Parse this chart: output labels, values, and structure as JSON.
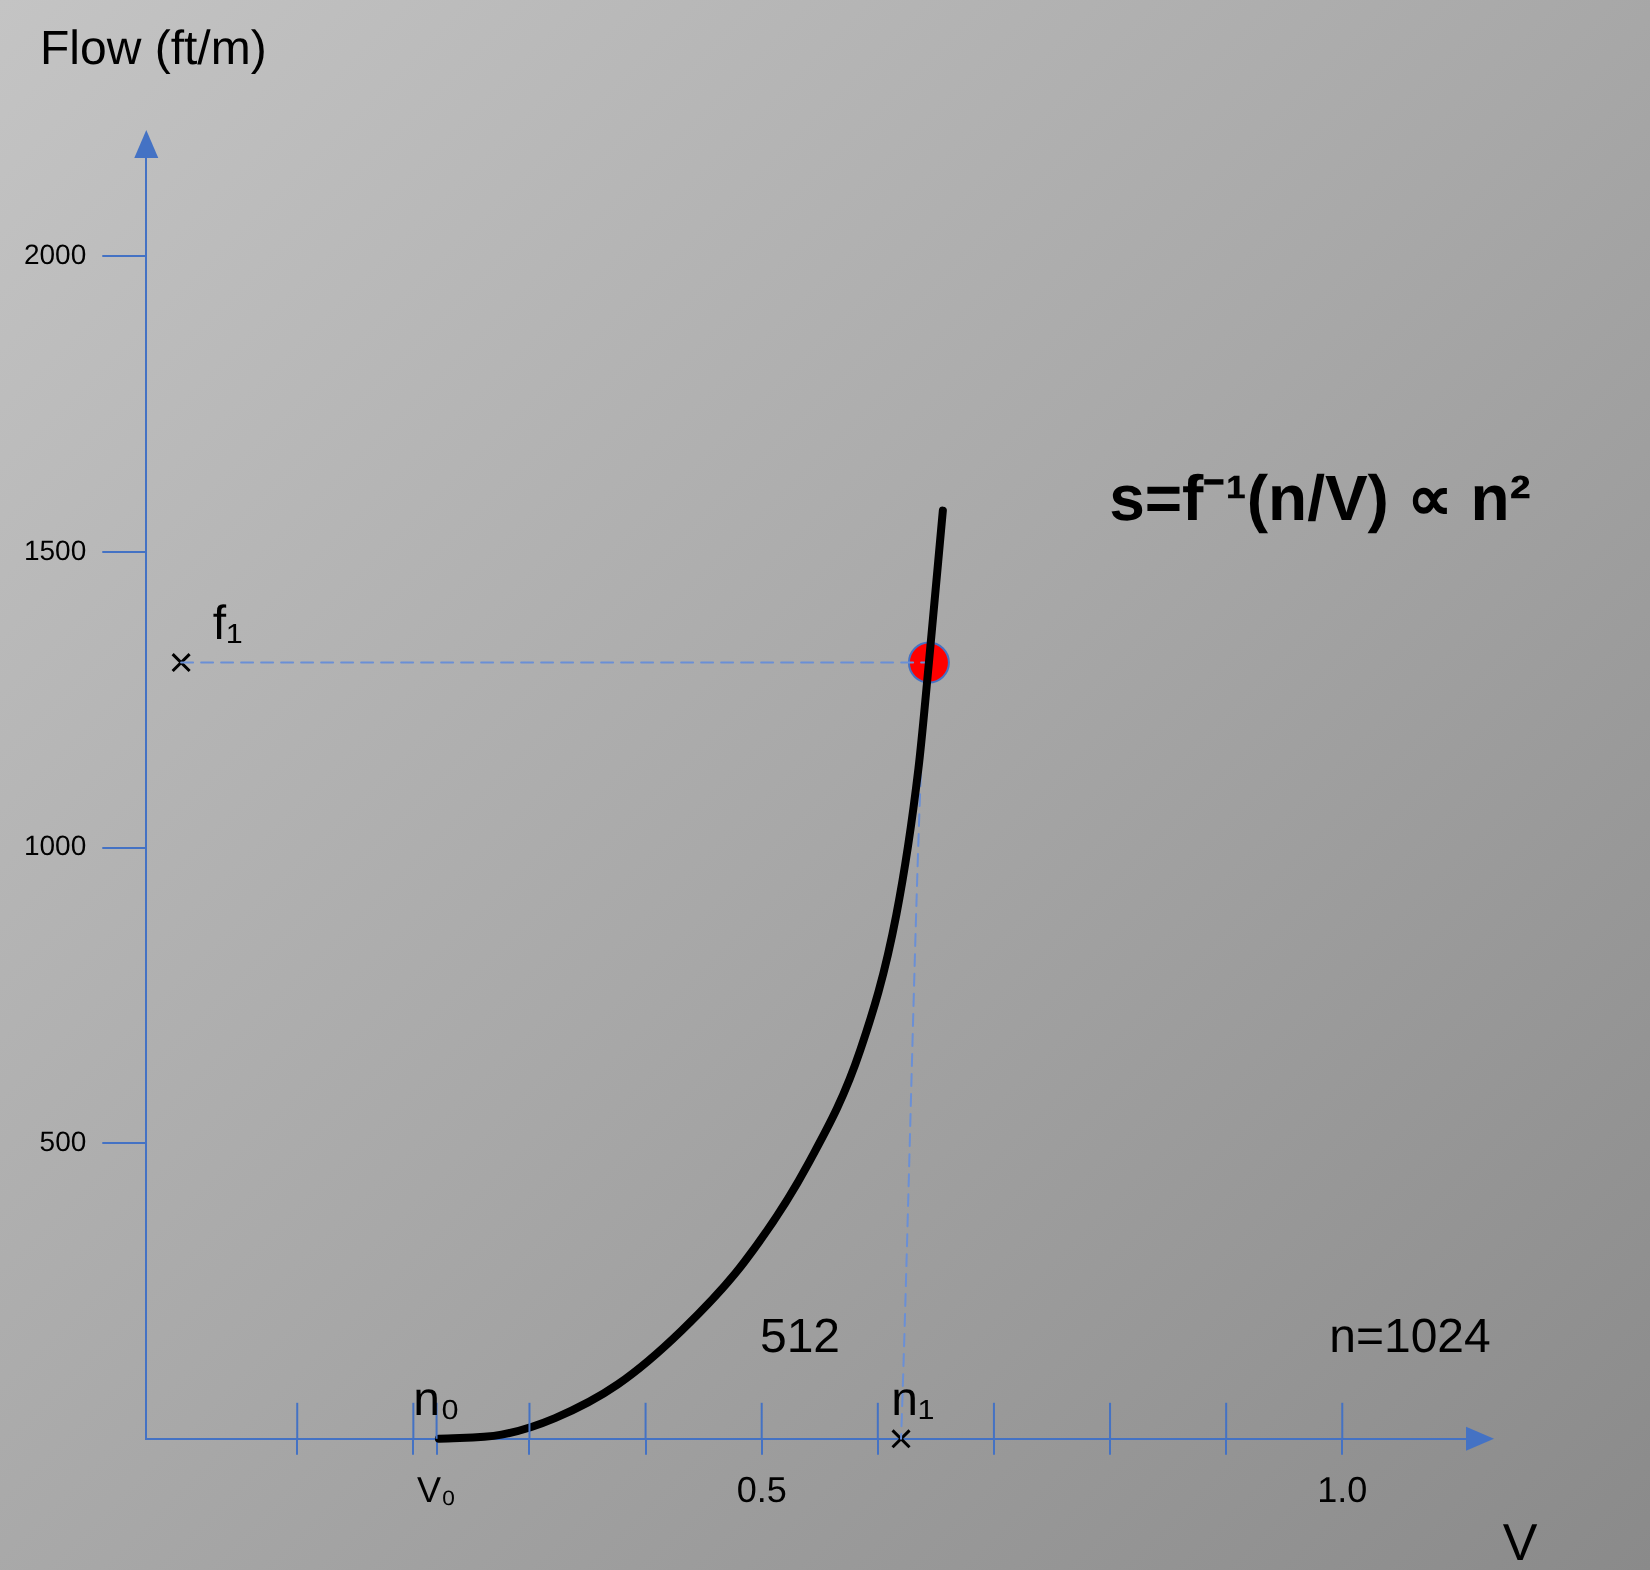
{
  "chart_data": {
    "type": "line",
    "ylabel": "Flow (ft/m)",
    "xlabel": "V",
    "xlim": [
      -0.03,
      1.11
    ],
    "ylim": [
      0,
      2180
    ],
    "xticks": [
      {
        "value": 0.1,
        "label": null
      },
      {
        "value": 0.2,
        "label": null
      },
      {
        "value": 0.22,
        "label": "V₀"
      },
      {
        "value": 0.3,
        "label": null
      },
      {
        "value": 0.4,
        "label": null
      },
      0.5,
      {
        "value": 0.6,
        "label": null
      },
      {
        "value": 0.7,
        "label": null
      },
      {
        "value": 0.8,
        "label": null
      },
      {
        "value": 0.9,
        "label": null
      },
      {
        "value": 1.0,
        "label": "1.0"
      }
    ],
    "yticks": [
      500,
      1000,
      1500,
      2000
    ],
    "grid": false,
    "legend": false,
    "series": [
      {
        "color": "#000000",
        "marker": "none",
        "line_style": "solid",
        "x": [
          0.222,
          0.276,
          0.322,
          0.376,
          0.431,
          0.485,
          0.54,
          0.585,
          0.616,
          0.635,
          0.644,
          0.656
        ],
        "values": [
          0,
          7,
          35,
          92,
          183,
          299,
          465,
          658,
          887,
          1134,
          1313,
          1570
        ]
      },
      {
        "color": "#6a8fd6",
        "marker": "none",
        "line_style": "dashed",
        "x": [
          0,
          0.644,
          0.62
        ],
        "values": [
          1313,
          1313,
          0
        ]
      },
      {
        "type": "scatter",
        "color": "#000000",
        "marker": "cross",
        "x": [
          0,
          0.62
        ],
        "values": [
          1313,
          0
        ]
      },
      {
        "type": "scatter",
        "color": "#ff0000",
        "marker": "circle",
        "x": [
          0.644
        ],
        "values": [
          1313
        ]
      }
    ],
    "annotations": [
      "s=f⁻¹(n/V) ∝ n²",
      {
        "text": "f₁",
        "x": 0.04,
        "y": 1313
      },
      {
        "text": "n₀",
        "x": 0.22,
        "y": 0
      },
      "512",
      {
        "text": "n₁",
        "x": 0.63,
        "y": 0
      },
      "n=1024"
    ]
  }
}
